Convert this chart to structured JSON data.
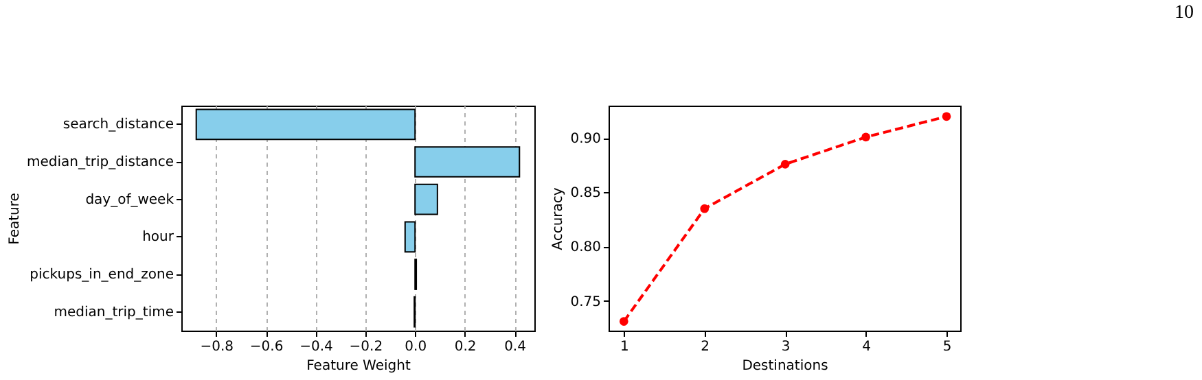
{
  "chart_data": [
    {
      "type": "bar",
      "orientation": "horizontal",
      "xlabel": "Feature Weight",
      "ylabel": "Feature",
      "categories": [
        "search_distance",
        "median_trip_distance",
        "day_of_week",
        "hour",
        "pickups_in_end_zone",
        "median_trip_time"
      ],
      "values": [
        -0.88,
        0.42,
        0.09,
        -0.04,
        0.005,
        -0.003
      ],
      "color": "#87ceeb",
      "xlim": [
        -0.94,
        0.48
      ],
      "xticks": [
        -0.8,
        -0.6,
        -0.4,
        -0.2,
        {
          "value": 0,
          "label": "0.0"
        },
        0.2,
        0.4
      ],
      "grid": "x"
    },
    {
      "type": "line",
      "xlabel": "Destinations",
      "ylabel": "Accuracy",
      "x": [
        1,
        2,
        3,
        4,
        5
      ],
      "series": [
        {
          "color": "#ff0000",
          "values": [
            0.731,
            0.835,
            0.876,
            0.901,
            0.92
          ]
        }
      ],
      "marker": "circle",
      "line_style": "dashed",
      "xlim": [
        0.81,
        5.17
      ],
      "xticks": [
        1,
        2,
        3,
        4,
        5
      ],
      "ylim": [
        0.7225,
        0.93
      ],
      "yticks": [
        0.75,
        {
          "value": 0.8,
          "label": "0.80"
        },
        0.85,
        {
          "value": 0.9,
          "label": "0.90"
        }
      ],
      "annotations": [
        "10"
      ]
    }
  ]
}
